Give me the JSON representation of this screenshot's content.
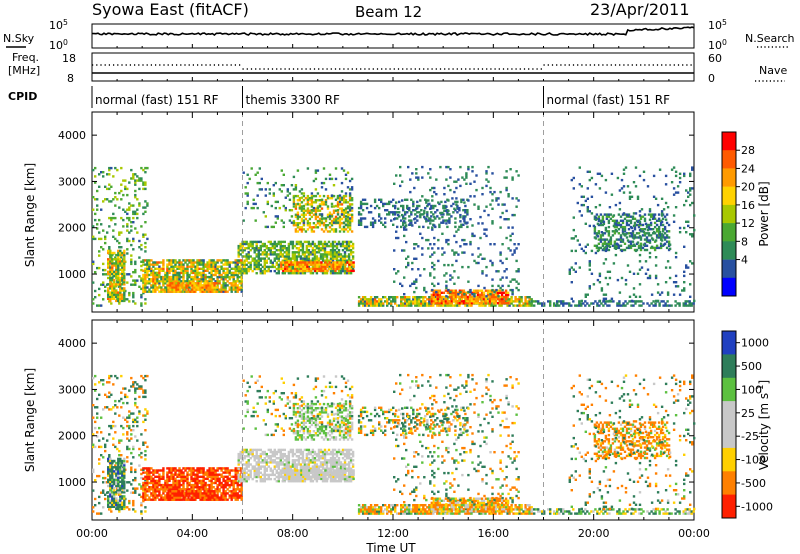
{
  "header": {
    "station": "Syowa East (fitACF)",
    "beam": "Beam 12",
    "date": "23/Apr/2011"
  },
  "strips": {
    "nsky_label": "N.Sky",
    "nsearch_label": "N.Search",
    "nsky_ticks": [
      "10^5",
      "10^0"
    ],
    "nsearch_ticks": [
      "10^5",
      "10^0"
    ],
    "freq_label_1": "Freq.",
    "freq_label_2": "[MHz]",
    "freq_ticks": [
      "18",
      "8"
    ],
    "nave_label": "Nave",
    "nave_ticks": [
      "60",
      "0"
    ],
    "cpid_label": "CPID"
  },
  "cpid_segments": [
    {
      "label": "normal (fast) 151 RF",
      "start_hour": 0,
      "end_hour": 6
    },
    {
      "label": "themis 3300 RF",
      "start_hour": 6,
      "end_hour": 18
    },
    {
      "label": "normal (fast) 151 RF",
      "start_hour": 18,
      "end_hour": 24
    }
  ],
  "colorbars": {
    "power": {
      "title": "Power [dB]",
      "ticks": [
        "28",
        "24",
        "20",
        "16",
        "12",
        "8",
        "4"
      ],
      "colors": [
        "#ff0000",
        "#ff5a00",
        "#ff9a00",
        "#ffd200",
        "#a8c800",
        "#4aa832",
        "#2e8b57",
        "#2850a0",
        "#0000ff"
      ]
    },
    "velocity": {
      "title": "Velocity [m s^-1]",
      "ticks": [
        "1000",
        "500",
        "100",
        "25",
        "-25",
        "-100",
        "-500",
        "-1000"
      ],
      "colors": [
        "#2040c0",
        "#2e7d5a",
        "#5cc040",
        "#c8c8c8",
        "#c8c8c8",
        "#ffd000",
        "#ff8000",
        "#ff2000"
      ]
    }
  },
  "chart_data": {
    "type": "heatmap",
    "x": {
      "label": "Time UT",
      "range_hours": [
        0,
        24
      ],
      "ticks": [
        "00:00",
        "04:00",
        "08:00",
        "12:00",
        "16:00",
        "20:00",
        "00:00"
      ]
    },
    "y": {
      "label": "Slant Range [km]",
      "range_km": [
        180,
        4500
      ],
      "ticks": [
        "1000",
        "2000",
        "3000",
        "4000"
      ]
    },
    "dashed_hours": [
      6,
      18
    ],
    "data_gaps_hours": [
      [
        10.45,
        10.55
      ]
    ],
    "panels": [
      {
        "parameter": "Power",
        "unit": "dB",
        "scale": [
          0,
          30
        ]
      },
      {
        "parameter": "Velocity",
        "unit": "m s^-1",
        "scale": [
          -1000,
          1000
        ]
      }
    ],
    "echo_regions": [
      {
        "t": [
          0.0,
          2.2
        ],
        "r": [
          300,
          3300
        ],
        "density": 0.18,
        "power": [
          6,
          16
        ],
        "velocity": [
          -300,
          300
        ]
      },
      {
        "t": [
          0.6,
          1.3
        ],
        "r": [
          400,
          1500
        ],
        "density": 0.75,
        "power": [
          8,
          24
        ],
        "velocity": [
          -100,
          600
        ]
      },
      {
        "t": [
          2.0,
          6.0
        ],
        "r": [
          600,
          1300
        ],
        "density": 0.75,
        "power": [
          6,
          24
        ],
        "velocity": [
          -900,
          -200
        ]
      },
      {
        "t": [
          3.0,
          5.0
        ],
        "r": [
          600,
          800
        ],
        "density": 0.85,
        "power": [
          16,
          26
        ],
        "velocity": [
          -800,
          -300
        ]
      },
      {
        "t": [
          5.8,
          10.4
        ],
        "r": [
          1000,
          1700
        ],
        "density": 0.7,
        "power": [
          6,
          18
        ],
        "velocity": [
          -30,
          30
        ]
      },
      {
        "t": [
          7.5,
          10.4
        ],
        "r": [
          1050,
          1250
        ],
        "density": 0.8,
        "power": [
          18,
          28
        ],
        "velocity": [
          -30,
          30
        ]
      },
      {
        "t": [
          8.0,
          10.4
        ],
        "r": [
          1900,
          2700
        ],
        "density": 0.5,
        "power": [
          10,
          24
        ],
        "velocity": [
          -30,
          80
        ]
      },
      {
        "t": [
          6.0,
          10.4
        ],
        "r": [
          2000,
          3300
        ],
        "density": 0.12,
        "power": [
          4,
          14
        ],
        "velocity": [
          -200,
          200
        ]
      },
      {
        "t": [
          10.6,
          17.5
        ],
        "r": [
          300,
          500
        ],
        "density": 0.8,
        "power": [
          6,
          24
        ],
        "velocity": [
          -300,
          150
        ]
      },
      {
        "t": [
          13.5,
          16.6
        ],
        "r": [
          350,
          650
        ],
        "density": 0.8,
        "power": [
          18,
          28
        ],
        "velocity": [
          -200,
          50
        ]
      },
      {
        "t": [
          10.6,
          15.0
        ],
        "r": [
          2000,
          2600
        ],
        "density": 0.3,
        "power": [
          4,
          10
        ],
        "velocity": [
          -300,
          300
        ]
      },
      {
        "t": [
          12.0,
          17.0
        ],
        "r": [
          500,
          3300
        ],
        "density": 0.1,
        "power": [
          4,
          10
        ],
        "velocity": [
          -400,
          400
        ]
      },
      {
        "t": [
          17.5,
          18.5
        ],
        "r": [
          300,
          400
        ],
        "density": 0.6,
        "power": [
          4,
          12
        ],
        "velocity": [
          -100,
          200
        ]
      },
      {
        "t": [
          18.5,
          24.0
        ],
        "r": [
          300,
          400
        ],
        "density": 0.5,
        "power": [
          4,
          10
        ],
        "velocity": [
          -100,
          200
        ]
      },
      {
        "t": [
          20.0,
          23.0
        ],
        "r": [
          1500,
          2300
        ],
        "density": 0.45,
        "power": [
          4,
          12
        ],
        "velocity": [
          -400,
          100
        ]
      },
      {
        "t": [
          19.0,
          24.0
        ],
        "r": [
          400,
          3300
        ],
        "density": 0.08,
        "power": [
          4,
          10
        ],
        "velocity": [
          -500,
          500
        ]
      }
    ]
  }
}
